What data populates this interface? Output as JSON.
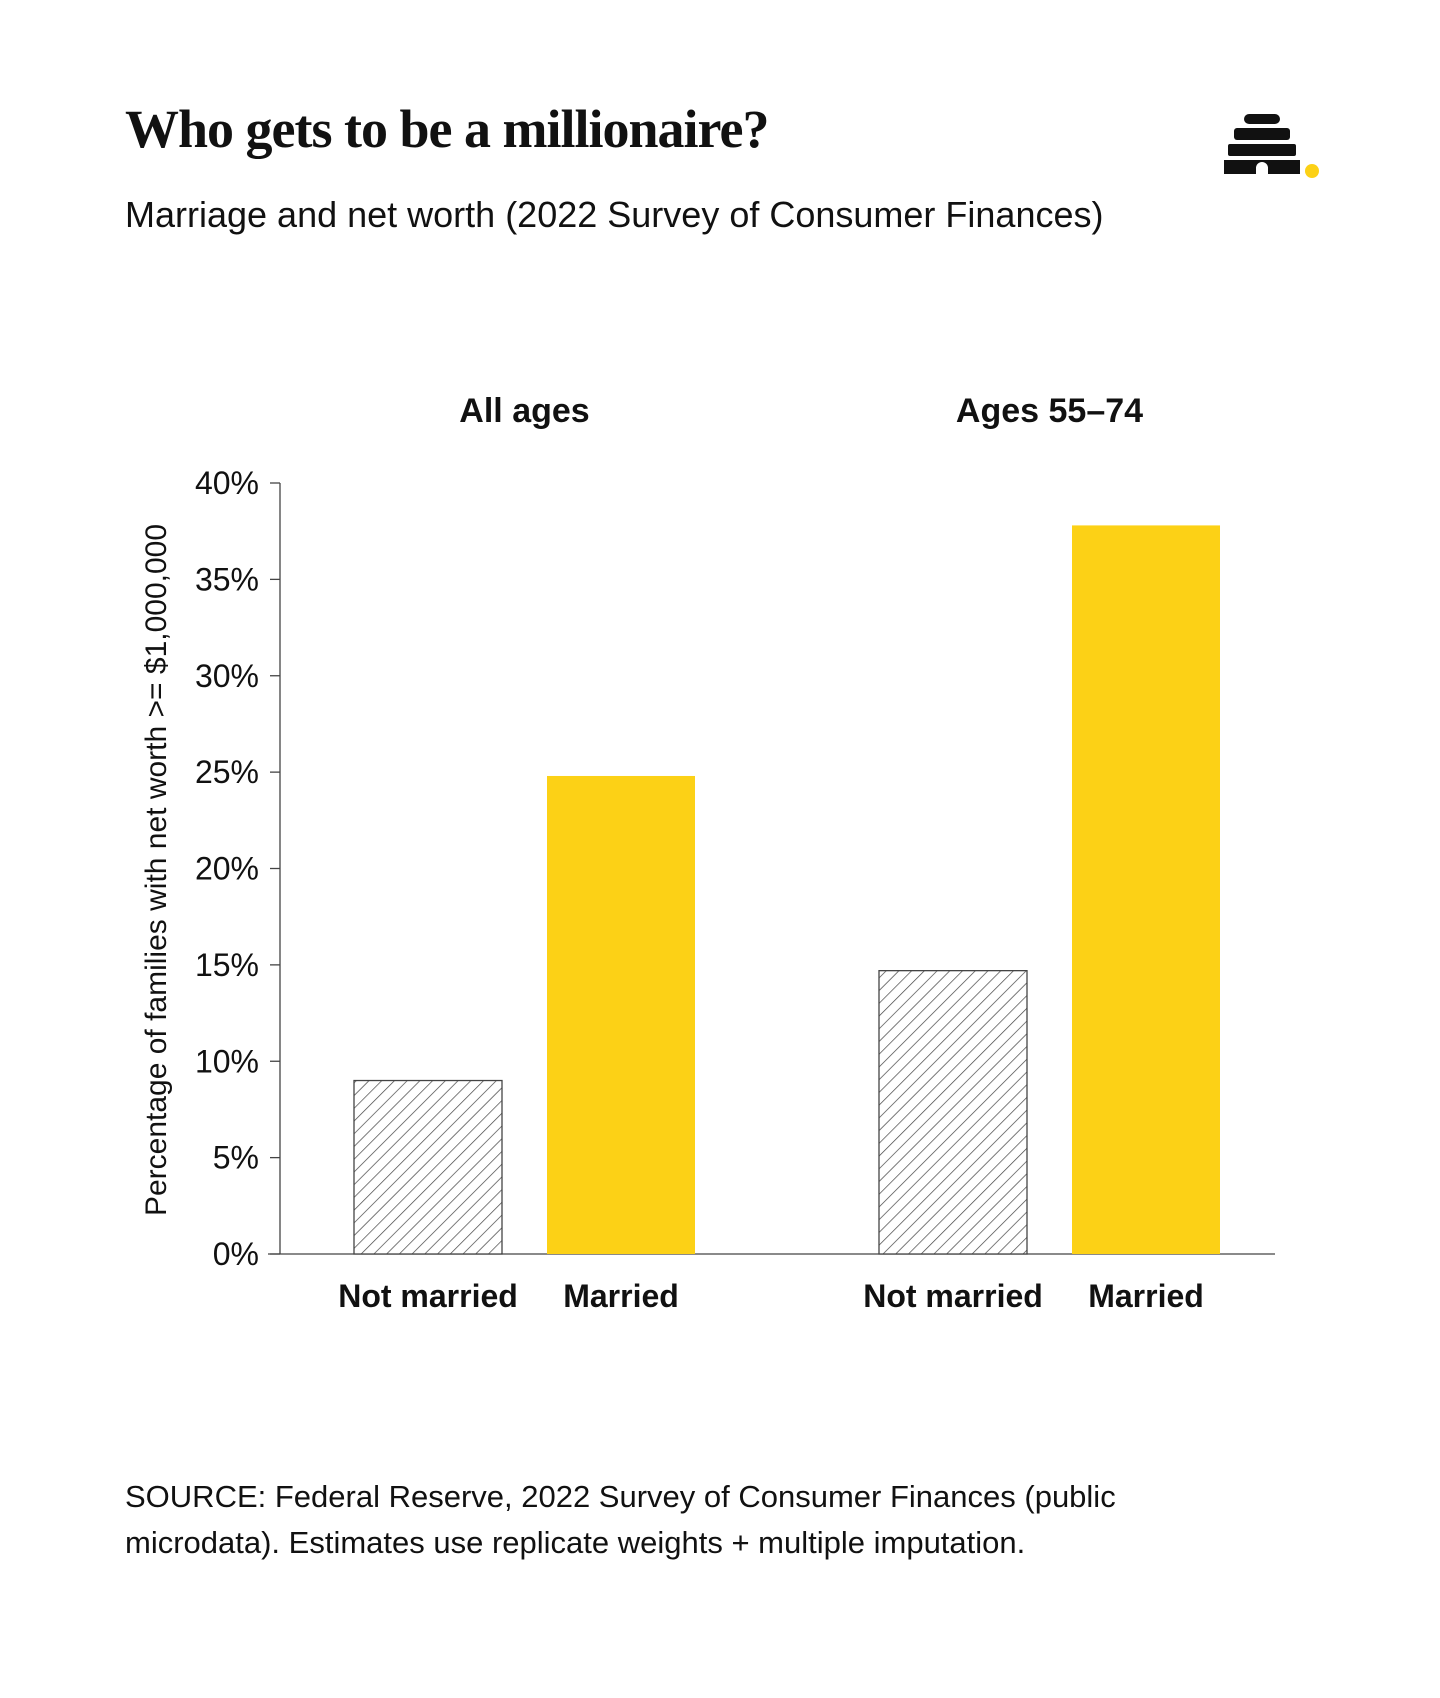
{
  "title": "Who gets to be a millionaire?",
  "subtitle": "Marriage and net worth (2022 Survey of Consumer Finances)",
  "source": "SOURCE: Federal Reserve, 2022 Survey of Consumer Finances (public microdata). Estimates use replicate weights + multiple imputation.",
  "logo_icon": "beehive-icon",
  "colors": {
    "married": "#FCD116",
    "not_married_hatch": "#444444",
    "logo_dot": "#FCD116",
    "text": "#111111"
  },
  "chart_data": {
    "type": "bar",
    "panels": [
      "All ages",
      "Ages 55–74"
    ],
    "categories": [
      "Not married",
      "Married"
    ],
    "series": [
      {
        "name": "All ages",
        "values": [
          9.0,
          24.8
        ]
      },
      {
        "name": "Ages 55–74",
        "values": [
          14.7,
          37.8
        ]
      }
    ],
    "ylabel": "Percentage of families with net worth >= $1,000,000",
    "xlabel": "",
    "ylim": [
      0,
      40
    ],
    "yticks": [
      "0%",
      "5%",
      "10%",
      "15%",
      "20%",
      "25%",
      "30%",
      "35%",
      "40%"
    ],
    "grid": false,
    "legend": "none"
  }
}
